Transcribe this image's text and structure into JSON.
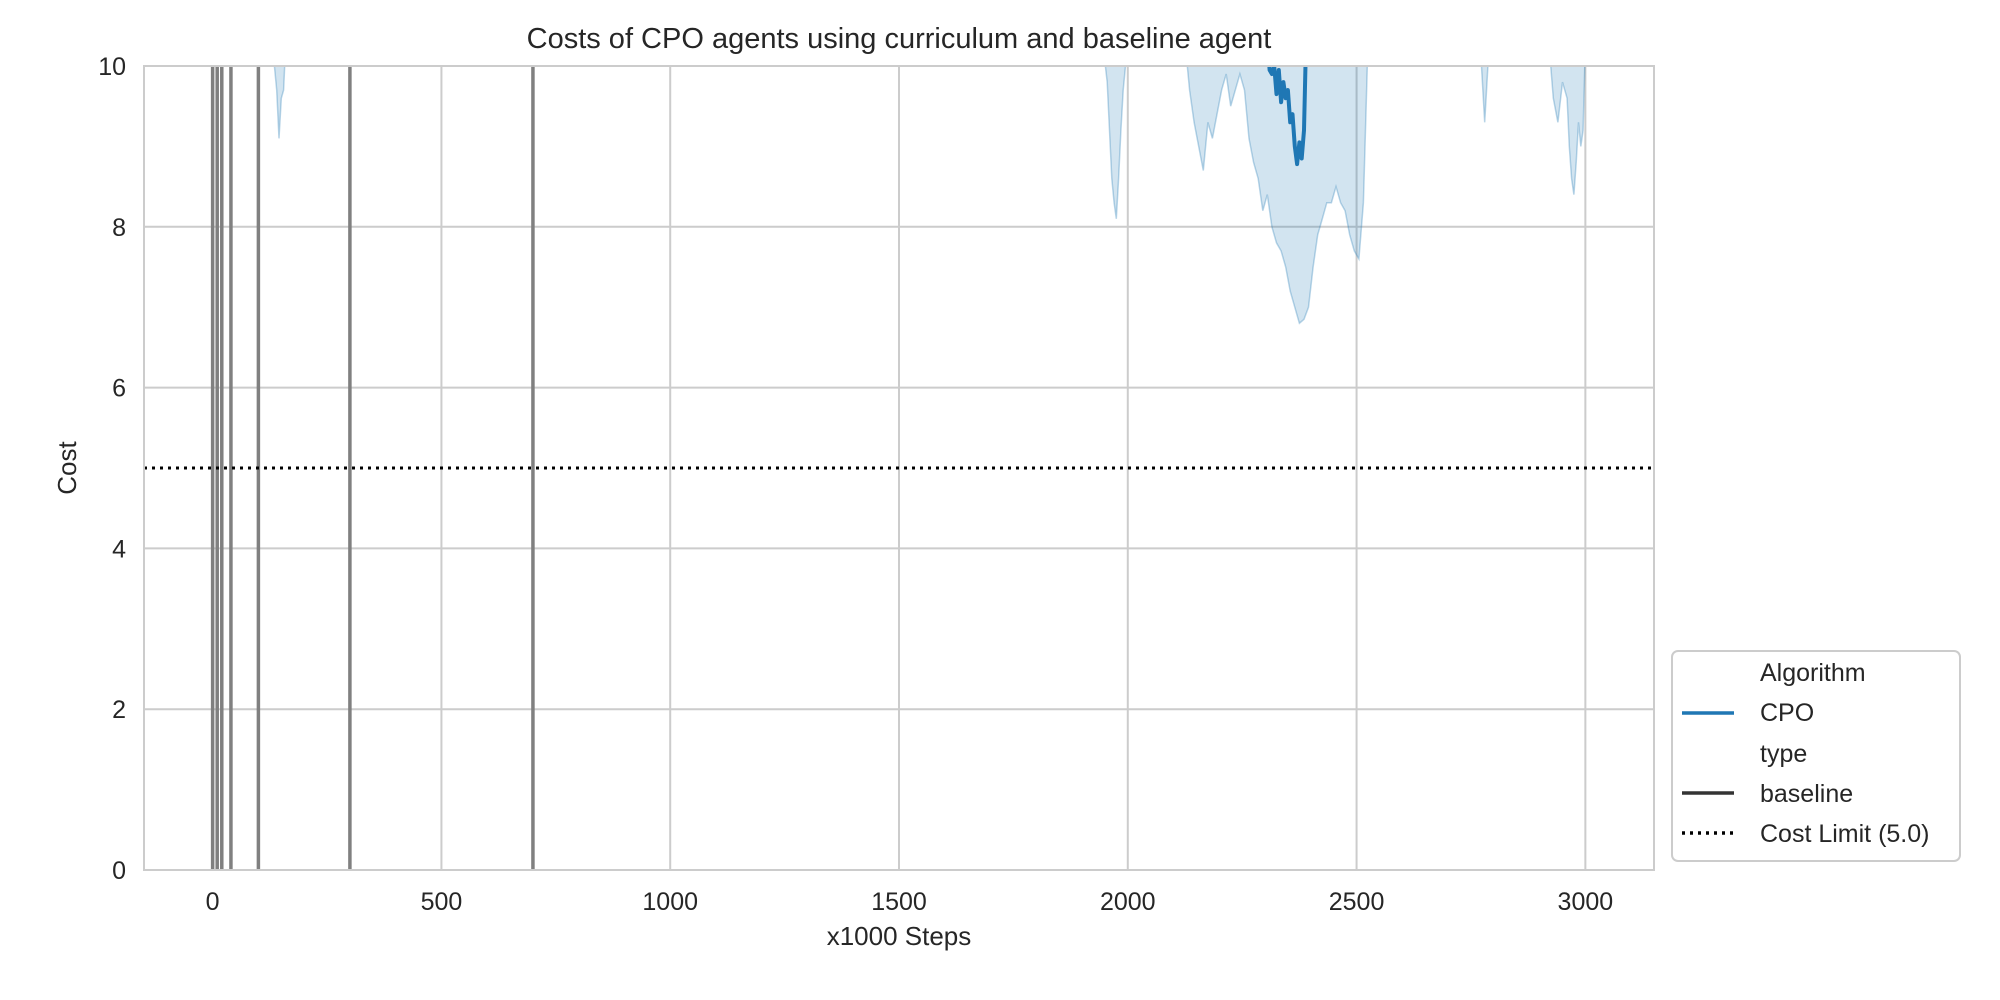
{
  "chart_data": {
    "type": "line",
    "title": "Costs of CPO agents using curriculum and baseline agent",
    "xlabel": "x1000 Steps",
    "ylabel": "Cost",
    "xlim": [
      -150,
      3150
    ],
    "ylim": [
      0,
      10
    ],
    "xticks": [
      0,
      500,
      1000,
      1500,
      2000,
      2500,
      3000
    ],
    "yticks": [
      0,
      2,
      4,
      6,
      8,
      10
    ],
    "grid": true,
    "legend": {
      "placement": "lower right, outside plot",
      "entries": [
        {
          "label": "Algorithm",
          "style": "header"
        },
        {
          "label": "CPO",
          "style": "line",
          "color": "#1f77b4"
        },
        {
          "label": "type",
          "style": "header"
        },
        {
          "label": "baseline",
          "style": "line",
          "color": "#333333"
        },
        {
          "label": "Cost Limit (5.0)",
          "style": "dotted",
          "color": "#000000"
        }
      ]
    },
    "reference_line": {
      "name": "Cost Limit (5.0)",
      "y": 5.0,
      "color": "#000000",
      "style": "dotted"
    },
    "curriculum_switch_markers": {
      "color": "#808080",
      "x": [
        0,
        10,
        20,
        40,
        100,
        300,
        700
      ]
    },
    "series": [
      {
        "name": "CPO",
        "color": "#1f77b4",
        "mean": [
          [
            2305,
            10.4
          ],
          [
            2310,
            9.95
          ],
          [
            2315,
            9.9
          ],
          [
            2320,
            10.0
          ],
          [
            2325,
            9.65
          ],
          [
            2330,
            9.95
          ],
          [
            2335,
            9.55
          ],
          [
            2340,
            9.8
          ],
          [
            2345,
            9.6
          ],
          [
            2350,
            9.7
          ],
          [
            2355,
            9.3
          ],
          [
            2360,
            9.4
          ],
          [
            2365,
            9.0
          ],
          [
            2370,
            8.78
          ],
          [
            2375,
            9.05
          ],
          [
            2380,
            8.85
          ],
          [
            2385,
            9.2
          ],
          [
            2390,
            10.4
          ]
        ],
        "ci_regions": [
          {
            "x": [
              130,
              140,
              145,
              150,
              155,
              160
            ],
            "lower": [
              10.3,
              9.7,
              9.1,
              9.6,
              9.7,
              10.3
            ]
          },
          {
            "x": [
              1945,
              1955,
              1960,
              1965,
              1970,
              1975,
              1980,
              1985,
              1990,
              1995,
              2000
            ],
            "lower": [
              10.3,
              9.8,
              9.2,
              8.6,
              8.3,
              8.1,
              8.6,
              9.2,
              9.7,
              10.0,
              10.3
            ]
          },
          {
            "x": [
              2125,
              2135,
              2145,
              2155,
              2165,
              2175,
              2185,
              2195,
              2205,
              2215,
              2225,
              2235,
              2245,
              2255,
              2265,
              2275,
              2285,
              2295,
              2305,
              2315,
              2325,
              2335,
              2345,
              2355,
              2365,
              2375,
              2385,
              2395,
              2405,
              2415,
              2425,
              2435,
              2445,
              2455,
              2465,
              2475,
              2485,
              2495,
              2505,
              2515,
              2525
            ],
            "lower": [
              10.3,
              9.7,
              9.3,
              9.0,
              8.7,
              9.3,
              9.1,
              9.4,
              9.7,
              9.9,
              9.5,
              9.7,
              9.9,
              9.7,
              9.1,
              8.8,
              8.6,
              8.2,
              8.4,
              8.0,
              7.8,
              7.7,
              7.5,
              7.2,
              7.0,
              6.8,
              6.85,
              7.0,
              7.5,
              7.9,
              8.1,
              8.3,
              8.3,
              8.5,
              8.3,
              8.2,
              7.9,
              7.7,
              7.6,
              8.3,
              10.3
            ]
          },
          {
            "x": [
              2770,
              2775,
              2780,
              2785,
              2790
            ],
            "lower": [
              10.3,
              9.8,
              9.3,
              9.8,
              10.3
            ]
          },
          {
            "x": [
              2920,
              2930,
              2940,
              2950,
              2960,
              2965,
              2970,
              2975,
              2980,
              2985,
              2990,
              2995,
              3000
            ],
            "lower": [
              10.3,
              9.6,
              9.3,
              9.8,
              9.6,
              9.0,
              8.6,
              8.4,
              8.8,
              9.3,
              9.0,
              9.2,
              10.3
            ]
          }
        ]
      }
    ]
  }
}
